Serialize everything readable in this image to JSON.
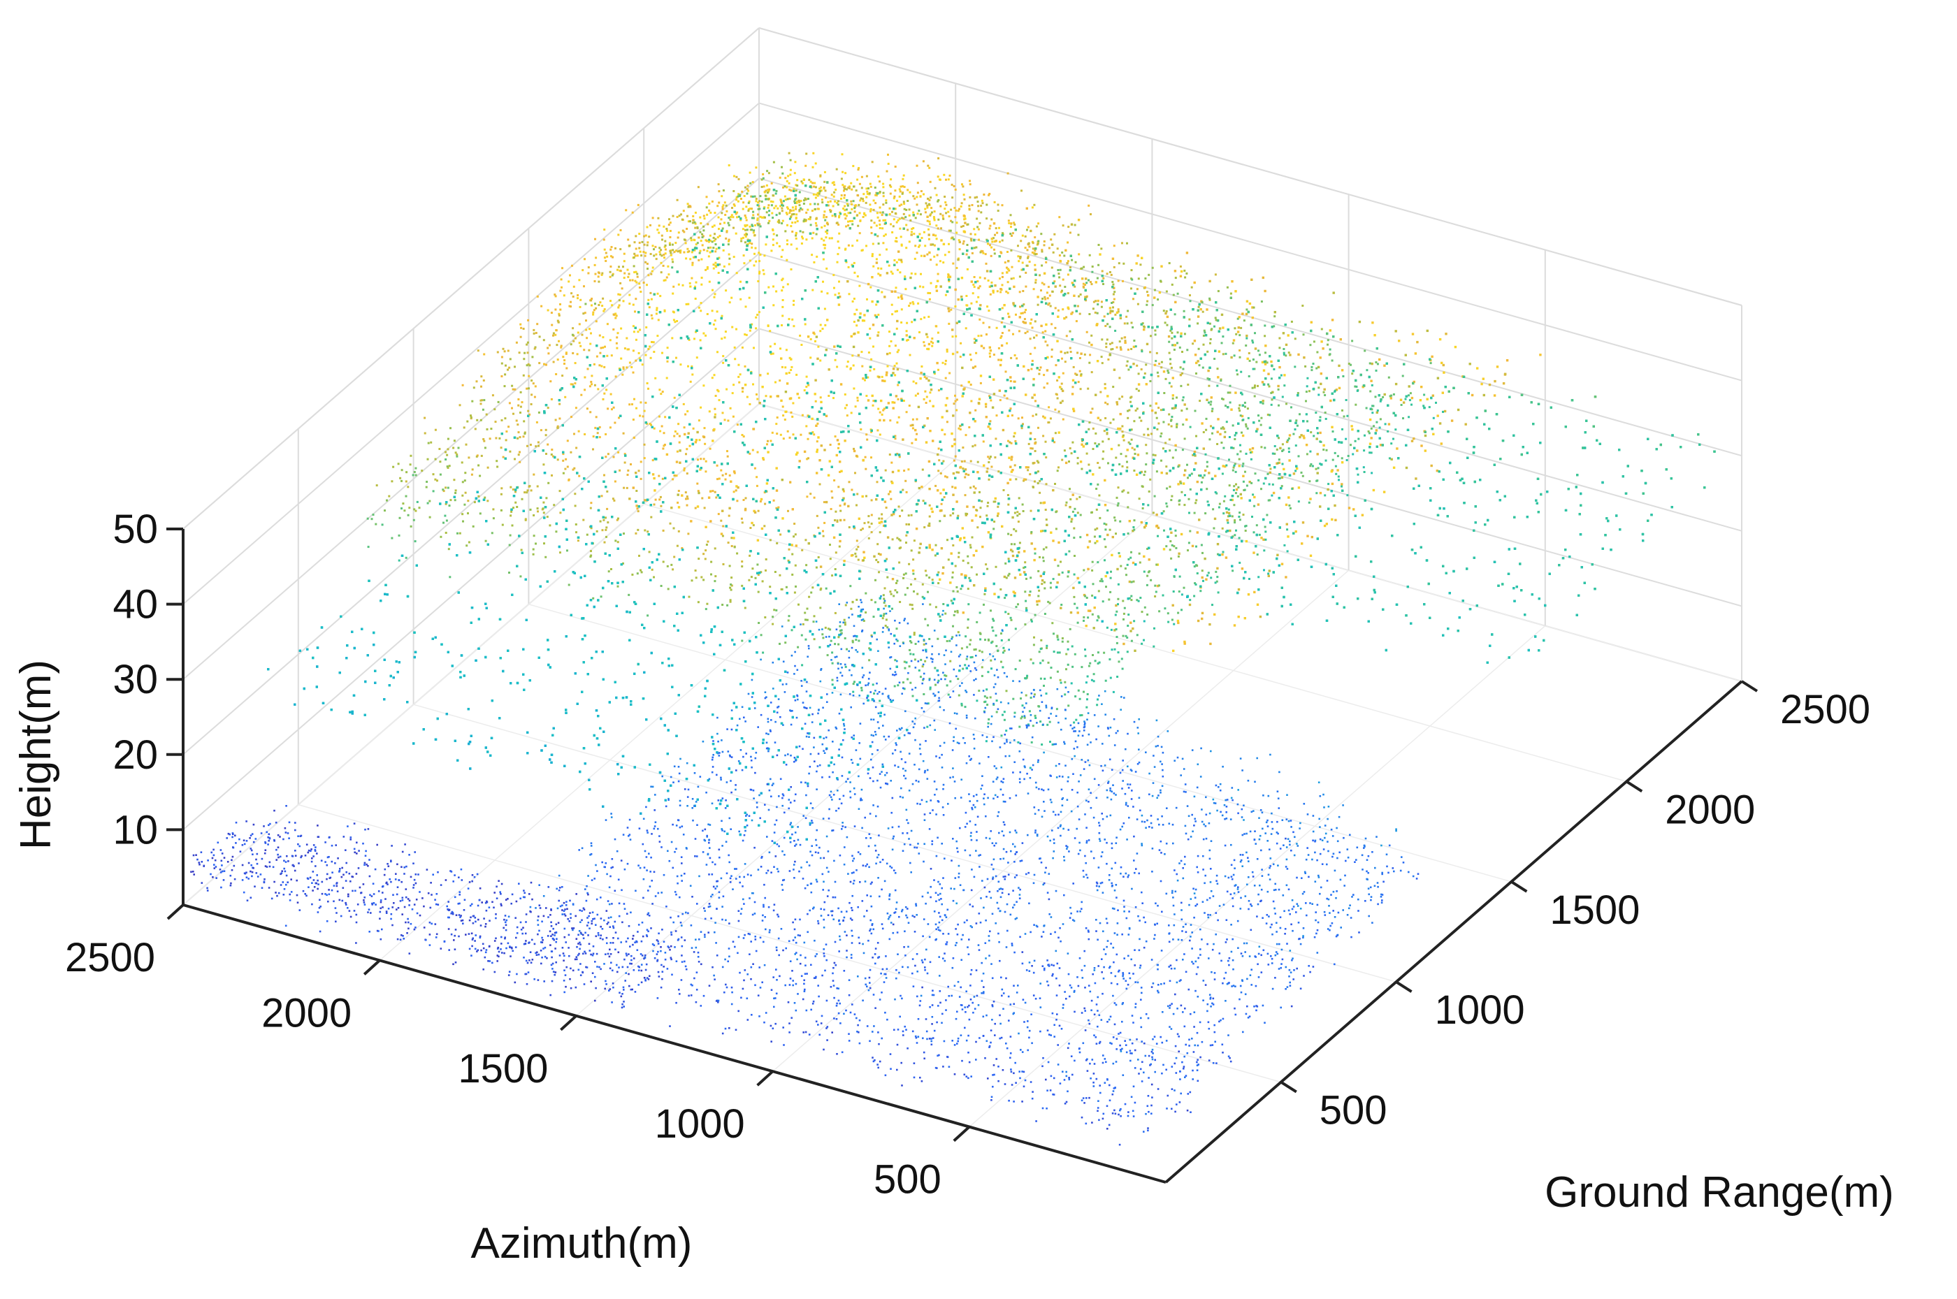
{
  "chart_data": {
    "type": "scatter",
    "subtype": "3d-point-cloud",
    "title": "",
    "xlabel": "Azimuth(m)",
    "ylabel": "Ground Range(m)",
    "zlabel": "Height(m)",
    "xlim": [
      0,
      2500
    ],
    "ylim": [
      0,
      2500
    ],
    "zlim": [
      0,
      50
    ],
    "xticks": [
      "2500",
      "2000",
      "1500",
      "1000",
      "500"
    ],
    "xtick_values": [
      2500,
      2000,
      1500,
      1000,
      500
    ],
    "yticks": [
      "500",
      "1000",
      "1500",
      "2000",
      "2500"
    ],
    "ytick_values": [
      500,
      1000,
      1500,
      2000,
      2500
    ],
    "zticks": [
      "10",
      "20",
      "30",
      "40",
      "50"
    ],
    "ztick_values": [
      10,
      20,
      30,
      40,
      50
    ],
    "grid": true,
    "colormap": "parula",
    "color_stops": [
      "#3e26a8",
      "#2c66f5",
      "#1aa5dc",
      "#1cc0c4",
      "#37c497",
      "#a6bf45",
      "#f2b83a",
      "#f9d826"
    ],
    "layers": [
      {
        "name": "",
        "desc_height": 18,
        "count": 9000
      },
      {
        "name": "",
        "desc_height": 5,
        "count": 3500
      },
      {
        "name": "",
        "desc_height": 38,
        "count": 4500
      }
    ]
  }
}
